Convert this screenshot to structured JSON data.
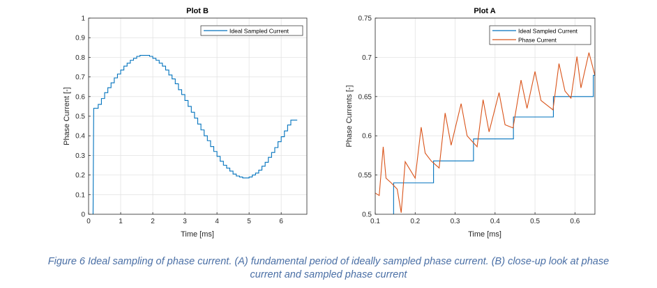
{
  "caption": {
    "line1": "Figure 6 Ideal sampling of phase current. (A) fundamental period of ideally sampled phase current. (B) close-up look at phase",
    "line2": "current and sampled phase current"
  },
  "colors": {
    "sampled": "#0072BD",
    "phase": "#D95319",
    "grid": "#e3e3e3",
    "axis": "#262626"
  },
  "chart_data": [
    {
      "type": "line",
      "title": "Plot B",
      "xlabel": "Time [ms]",
      "ylabel": "Phase Current [-]",
      "xlim": [
        0,
        6.8
      ],
      "ylim": [
        0,
        1
      ],
      "xticks": [
        0,
        1,
        2,
        3,
        4,
        5,
        6
      ],
      "yticks": [
        0,
        0.1,
        0.2,
        0.3,
        0.4,
        0.5,
        0.6,
        0.7,
        0.8,
        0.9,
        1
      ],
      "grid": true,
      "legend_position": "top-right",
      "series": [
        {
          "name": "Ideal Sampled Current",
          "style": "step",
          "color": "#0072BD",
          "x_start": 0.2,
          "x_step": 0.1,
          "pre_values": [
            [
              0.14,
              0
            ],
            [
              0.16,
              0.54
            ]
          ],
          "values": [
            0.54,
            0.56,
            0.59,
            0.62,
            0.645,
            0.67,
            0.695,
            0.715,
            0.735,
            0.755,
            0.77,
            0.785,
            0.795,
            0.805,
            0.81,
            0.81,
            0.81,
            0.805,
            0.795,
            0.785,
            0.77,
            0.755,
            0.735,
            0.71,
            0.69,
            0.665,
            0.635,
            0.61,
            0.58,
            0.55,
            0.52,
            0.49,
            0.46,
            0.43,
            0.4,
            0.375,
            0.345,
            0.32,
            0.295,
            0.27,
            0.25,
            0.235,
            0.22,
            0.205,
            0.195,
            0.19,
            0.185,
            0.185,
            0.19,
            0.2,
            0.21,
            0.225,
            0.245,
            0.265,
            0.29,
            0.315,
            0.34,
            0.37,
            0.395,
            0.425,
            0.455,
            0.48,
            0.48
          ]
        }
      ]
    },
    {
      "type": "line",
      "title": "Plot A",
      "xlabel": "Time [ms]",
      "ylabel": "Phase Currents [-]",
      "xlim": [
        0.1,
        0.65
      ],
      "ylim": [
        0.5,
        0.75
      ],
      "xticks": [
        0.1,
        0.2,
        0.3,
        0.4,
        0.5,
        0.6
      ],
      "yticks": [
        0.5,
        0.55,
        0.6,
        0.65,
        0.7,
        0.75
      ],
      "grid": true,
      "legend_position": "top-right",
      "series": [
        {
          "name": "Ideal Sampled Current",
          "style": "step",
          "color": "#0072BD",
          "points": [
            [
              0.146,
              0.5
            ],
            [
              0.146,
              0.54
            ],
            [
              0.246,
              0.54
            ],
            [
              0.246,
              0.568
            ],
            [
              0.346,
              0.568
            ],
            [
              0.346,
              0.596
            ],
            [
              0.446,
              0.596
            ],
            [
              0.446,
              0.624
            ],
            [
              0.546,
              0.624
            ],
            [
              0.546,
              0.65
            ],
            [
              0.646,
              0.65
            ],
            [
              0.646,
              0.677
            ],
            [
              0.65,
              0.677
            ]
          ]
        },
        {
          "name": "Phase Current",
          "style": "line",
          "color": "#D95319",
          "points": [
            [
              0.1,
              0.527
            ],
            [
              0.11,
              0.524
            ],
            [
              0.12,
              0.586
            ],
            [
              0.127,
              0.546
            ],
            [
              0.14,
              0.54
            ],
            [
              0.155,
              0.532
            ],
            [
              0.165,
              0.502
            ],
            [
              0.175,
              0.567
            ],
            [
              0.2,
              0.546
            ],
            [
              0.215,
              0.611
            ],
            [
              0.225,
              0.578
            ],
            [
              0.24,
              0.568
            ],
            [
              0.26,
              0.559
            ],
            [
              0.275,
              0.629
            ],
            [
              0.29,
              0.588
            ],
            [
              0.315,
              0.641
            ],
            [
              0.33,
              0.6
            ],
            [
              0.355,
              0.586
            ],
            [
              0.37,
              0.646
            ],
            [
              0.385,
              0.605
            ],
            [
              0.41,
              0.655
            ],
            [
              0.425,
              0.614
            ],
            [
              0.445,
              0.61
            ],
            [
              0.465,
              0.671
            ],
            [
              0.48,
              0.635
            ],
            [
              0.5,
              0.682
            ],
            [
              0.515,
              0.645
            ],
            [
              0.545,
              0.633
            ],
            [
              0.56,
              0.692
            ],
            [
              0.575,
              0.657
            ],
            [
              0.59,
              0.648
            ],
            [
              0.605,
              0.701
            ],
            [
              0.615,
              0.661
            ],
            [
              0.635,
              0.706
            ],
            [
              0.65,
              0.677
            ]
          ]
        }
      ]
    }
  ]
}
